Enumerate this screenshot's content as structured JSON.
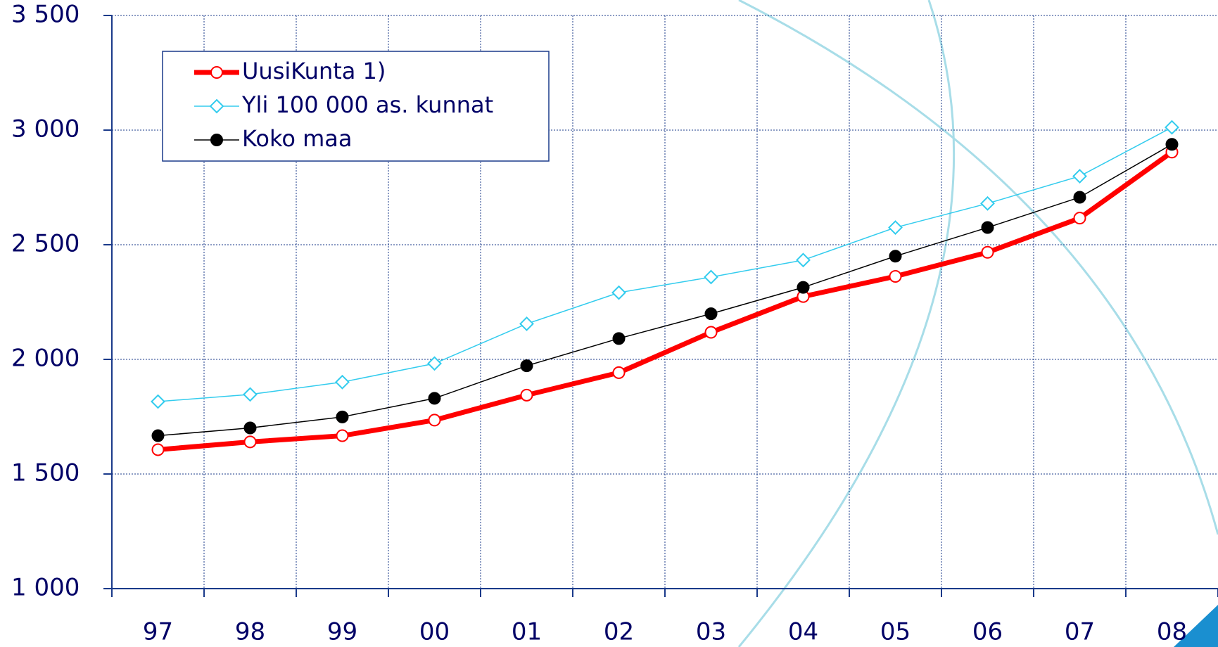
{
  "chart_data": {
    "type": "line",
    "categories": [
      "97",
      "98",
      "99",
      "00",
      "01",
      "02",
      "03",
      "04",
      "05",
      "06",
      "07",
      "08"
    ],
    "series": [
      {
        "name": "UusiKunta 1)",
        "color": "#ff0000",
        "values": [
          1606,
          1640,
          1667,
          1735,
          1844,
          1942,
          2118,
          2274,
          2362,
          2467,
          2616,
          2904
        ]
      },
      {
        "name": "Yli 100 000 as. kunnat",
        "color": "#33ccee",
        "values": [
          1816,
          1847,
          1901,
          1982,
          2155,
          2291,
          2359,
          2433,
          2575,
          2680,
          2799,
          3012
        ]
      },
      {
        "name": "Koko maa",
        "color": "#000000",
        "values": [
          1667,
          1701,
          1749,
          1830,
          1972,
          2091,
          2199,
          2314,
          2450,
          2575,
          2707,
          2938
        ]
      }
    ],
    "ylim": [
      1000,
      3500
    ],
    "yticks": [
      {
        "value": 1000,
        "label": "1 000"
      },
      {
        "value": 1500,
        "label": "1 500"
      },
      {
        "value": 2000,
        "label": "2 000"
      },
      {
        "value": 2500,
        "label": "2 500"
      },
      {
        "value": 3000,
        "label": "3 000"
      },
      {
        "value": 3500,
        "label": "3 500"
      }
    ],
    "grid": true
  }
}
